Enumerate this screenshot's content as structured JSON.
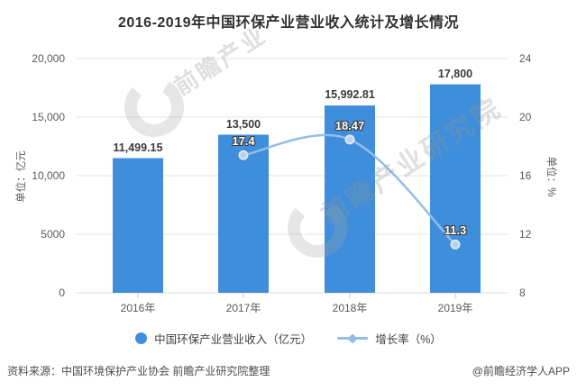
{
  "title": "2016-2019年中国环保产业营业收入统计及增长情况",
  "chart_data": {
    "type": "bar",
    "categories": [
      "2016年",
      "2017年",
      "2018年",
      "2019年"
    ],
    "series": [
      {
        "name": "中国环保产业营业收入（亿元）",
        "type": "bar",
        "axis": "left",
        "color": "#3e8edb",
        "values": [
          11499.15,
          13500,
          15992.81,
          17800
        ],
        "labels": [
          "11,499.15",
          "13,500",
          "15,992.81",
          "17,800"
        ]
      },
      {
        "name": "增长率（%）",
        "type": "line",
        "axis": "right",
        "color": "#93bde8",
        "marker_fill": "#b7d2ee",
        "marker_stroke": "#dce9f7",
        "values": [
          null,
          17.4,
          18.47,
          11.3
        ],
        "labels": [
          null,
          "17.4",
          "18.47",
          "11.3"
        ]
      }
    ],
    "left_axis": {
      "title": "单位：亿元",
      "min": 0,
      "max": 20000,
      "ticks": [
        20000,
        15000,
        10000,
        5000,
        0
      ],
      "tick_labels": [
        "20,000",
        "15,000",
        "10,000",
        "5000",
        "0"
      ]
    },
    "right_axis": {
      "title": "单位：%",
      "min": 8,
      "max": 24,
      "ticks": [
        24,
        20,
        16,
        12,
        8
      ],
      "tick_labels": [
        "24",
        "20",
        "16",
        "12",
        "8"
      ]
    },
    "grid": true,
    "legend_position": "bottom"
  },
  "watermark": {
    "text_small": "前瞻产业",
    "text_large": "前瞻产业研究院"
  },
  "footer": {
    "source": "资料来源：中国环境保护产业协会 前瞻产业研究院整理",
    "credit": "@前瞻经济学人APP"
  }
}
